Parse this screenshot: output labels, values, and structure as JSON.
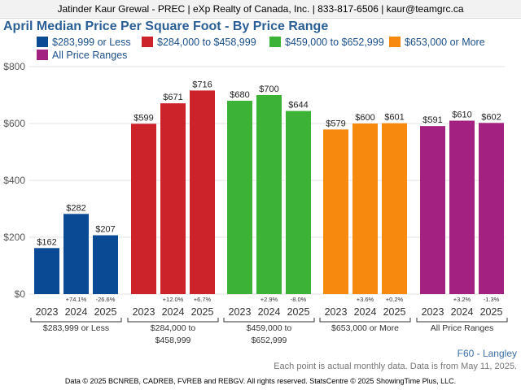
{
  "header": {
    "text": "Jatinder Kaur Grewal - PREC | eXp Realty of Canada, Inc. | 833-817-6506 | kaur@teamgrc.ca"
  },
  "chart_data": {
    "type": "bar",
    "title": "April Median Price Per Square Foot - By Price Range",
    "ylim": [
      0,
      800
    ],
    "yticks": [
      0,
      200,
      400,
      600,
      800
    ],
    "ytick_labels": [
      "$0",
      "$200",
      "$400",
      "$600",
      "$800"
    ],
    "grid": true,
    "legend_placement": "top",
    "groups": [
      {
        "name": "$283,999 or Less",
        "label_lines": [
          "$283,999 or Less"
        ],
        "color": "#0a4a94",
        "years": [
          "2023",
          "2024",
          "2025"
        ],
        "values": [
          162,
          282,
          207
        ],
        "value_labels": [
          "$162",
          "$282",
          "$207"
        ],
        "changes": [
          "",
          "+74.1%",
          "-26.6%"
        ]
      },
      {
        "name": "$284,000 to $458,999",
        "label_lines": [
          "$284,000 to",
          "$458,999"
        ],
        "color": "#cc2229",
        "years": [
          "2023",
          "2024",
          "2025"
        ],
        "values": [
          599,
          671,
          716
        ],
        "value_labels": [
          "$599",
          "$671",
          "$716"
        ],
        "changes": [
          "",
          "+12.0%",
          "+6.7%"
        ]
      },
      {
        "name": "$459,000 to $652,999",
        "label_lines": [
          "$459,000 to",
          "$652,999"
        ],
        "color": "#3cb336",
        "years": [
          "2023",
          "2024",
          "2025"
        ],
        "values": [
          680,
          700,
          644
        ],
        "value_labels": [
          "$680",
          "$700",
          "$644"
        ],
        "changes": [
          "",
          "+2.9%",
          "-8.0%"
        ]
      },
      {
        "name": "$653,000 or More",
        "label_lines": [
          "$653,000 or More"
        ],
        "color": "#f78a0e",
        "years": [
          "2023",
          "2024",
          "2025"
        ],
        "values": [
          579,
          600,
          601
        ],
        "value_labels": [
          "$579",
          "$600",
          "$601"
        ],
        "changes": [
          "",
          "+3.6%",
          "+0.2%"
        ]
      },
      {
        "name": "All Price Ranges",
        "label_lines": [
          "All Price Ranges"
        ],
        "color": "#a32180",
        "years": [
          "2023",
          "2024",
          "2025"
        ],
        "values": [
          591,
          610,
          602
        ],
        "value_labels": [
          "$591",
          "$610",
          "$602"
        ],
        "changes": [
          "",
          "+3.2%",
          "-1.3%"
        ]
      }
    ],
    "source_code": "F60 - Langley",
    "footnote": "Each point is actual monthly data. Data is from May 11, 2025."
  },
  "footer": {
    "text": "Data © 2025 BCNREB, CADREB, FVREB and REBGV. All rights reserved. StatsCentre © 2025 ShowingTime Plus, LLC."
  }
}
